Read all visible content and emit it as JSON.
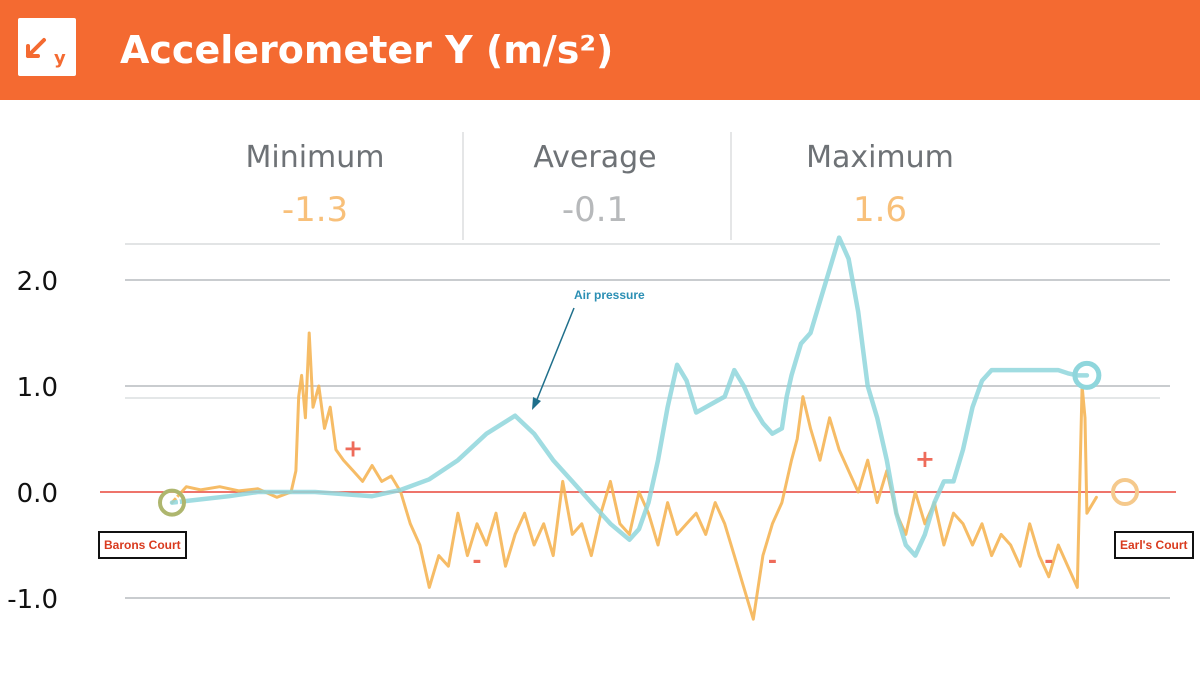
{
  "header": {
    "title": "Accelerometer Y (m/s²)",
    "icon": "accelerometer-y-icon",
    "icon_letter": "y",
    "background_color": "#f46a31"
  },
  "stats": {
    "minimum": {
      "label": "Minimum",
      "value": "-1.3",
      "color": "#f8c07a"
    },
    "average": {
      "label": "Average",
      "value": "-0.1",
      "color": "#b7b9bb"
    },
    "maximum": {
      "label": "Maximum",
      "value": "1.6",
      "color": "#f8c07a"
    }
  },
  "annotations": {
    "start_station": "Barons Court",
    "end_station": "Earl's Court",
    "air_pressure_label": "Air pressure",
    "sign_markers": [
      "+",
      "-",
      "-",
      "+",
      "-"
    ]
  },
  "chart_data": {
    "type": "line",
    "title": "",
    "xlabel": "",
    "ylabel": "",
    "ylim": [
      -1.3,
      2.4
    ],
    "x_range": [
      0,
      100
    ],
    "yticks": [
      -1.0,
      0.0,
      1.0,
      2.0
    ],
    "ytick_labels": [
      "-1.0",
      "0.0",
      "1.0",
      "2.0"
    ],
    "grid": true,
    "zero_line_color": "#e8463a",
    "series": [
      {
        "name": "",
        "color": "#f5b555",
        "x": [
          0,
          1.5,
          3,
          5,
          7,
          9,
          11,
          12.5,
          13,
          13.3,
          13.6,
          14,
          14.4,
          14.8,
          15.4,
          16,
          16.6,
          17.2,
          18,
          19,
          20,
          21,
          22,
          23,
          24,
          25,
          26,
          27,
          28,
          29,
          30,
          31,
          32,
          33,
          34,
          35,
          36,
          37,
          38,
          39,
          40,
          41,
          42,
          43,
          44,
          45,
          46,
          47,
          48,
          49,
          50,
          51,
          52,
          53,
          54,
          55,
          56,
          57,
          58,
          59,
          60,
          61,
          62,
          63,
          64,
          65,
          65.6,
          66.2,
          67,
          68,
          69,
          70,
          71,
          72,
          73,
          74,
          75,
          76,
          77,
          78,
          79,
          80,
          81,
          82,
          83,
          84,
          85,
          86,
          87,
          88,
          89,
          90,
          91,
          92,
          93,
          94,
          95,
          95.5,
          95.8,
          96,
          97
        ],
        "values": [
          -0.1,
          0.05,
          0.02,
          0.05,
          0.01,
          0.03,
          -0.05,
          0.0,
          0.2,
          0.9,
          1.1,
          0.7,
          1.5,
          0.8,
          1.0,
          0.6,
          0.8,
          0.4,
          0.3,
          0.2,
          0.1,
          0.25,
          0.1,
          0.15,
          0.0,
          -0.3,
          -0.5,
          -0.9,
          -0.6,
          -0.7,
          -0.2,
          -0.6,
          -0.3,
          -0.5,
          -0.2,
          -0.7,
          -0.4,
          -0.2,
          -0.5,
          -0.3,
          -0.6,
          0.1,
          -0.4,
          -0.3,
          -0.6,
          -0.2,
          0.1,
          -0.3,
          -0.4,
          0.0,
          -0.2,
          -0.5,
          -0.1,
          -0.4,
          -0.3,
          -0.2,
          -0.4,
          -0.1,
          -0.3,
          -0.6,
          -0.9,
          -1.2,
          -0.6,
          -0.3,
          -0.1,
          0.3,
          0.5,
          0.9,
          0.6,
          0.3,
          0.7,
          0.4,
          0.2,
          0.0,
          0.3,
          -0.1,
          0.2,
          -0.2,
          -0.4,
          0.0,
          -0.3,
          -0.1,
          -0.5,
          -0.2,
          -0.3,
          -0.5,
          -0.3,
          -0.6,
          -0.4,
          -0.5,
          -0.7,
          -0.3,
          -0.6,
          -0.8,
          -0.5,
          -0.7,
          -0.9,
          1.0,
          0.7,
          -0.2,
          -0.05
        ]
      },
      {
        "name": "Air pressure",
        "color": "#8fd6dc",
        "x": [
          0,
          3,
          6,
          9,
          12,
          15,
          18,
          21,
          24,
          27,
          30,
          33,
          36,
          38,
          40,
          42,
          44,
          46,
          48,
          49,
          50,
          51,
          52,
          53,
          54,
          55,
          56,
          57,
          58,
          59,
          60,
          61,
          62,
          63,
          64,
          64.5,
          65,
          65.5,
          66,
          67,
          68,
          69,
          70,
          71,
          72,
          73,
          74,
          75,
          76,
          77,
          78,
          79,
          80,
          81,
          82,
          83,
          84,
          85,
          86,
          87,
          88,
          89,
          90,
          91,
          92,
          93,
          94,
          95,
          96
        ],
        "values": [
          -0.1,
          -0.07,
          -0.04,
          0.0,
          0.0,
          0.0,
          -0.02,
          -0.04,
          0.02,
          0.12,
          0.3,
          0.55,
          0.72,
          0.55,
          0.3,
          0.1,
          -0.1,
          -0.3,
          -0.45,
          -0.35,
          -0.1,
          0.3,
          0.8,
          1.2,
          1.05,
          0.75,
          0.8,
          0.85,
          0.9,
          1.15,
          1.0,
          0.8,
          0.65,
          0.55,
          0.6,
          0.9,
          1.1,
          1.25,
          1.4,
          1.5,
          1.8,
          2.1,
          2.4,
          2.2,
          1.7,
          1.0,
          0.7,
          0.3,
          -0.2,
          -0.5,
          -0.6,
          -0.4,
          -0.1,
          0.1,
          0.1,
          0.4,
          0.8,
          1.05,
          1.15,
          1.15,
          1.15,
          1.15,
          1.15,
          1.15,
          1.15,
          1.15,
          1.12,
          1.1,
          1.1
        ]
      }
    ]
  }
}
